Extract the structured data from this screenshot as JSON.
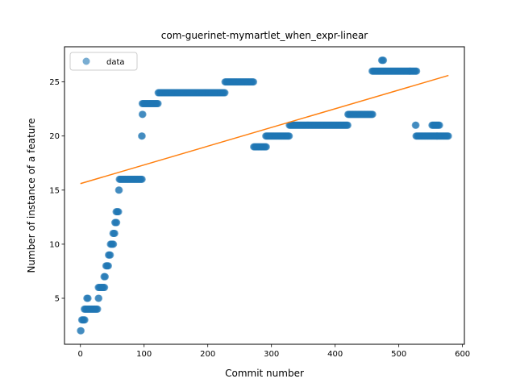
{
  "chart_data": {
    "type": "scatter",
    "title": "com-guerinet-mymartlet_when_expr-linear",
    "xlabel": "Commit number",
    "ylabel": "Number of instance of a feature",
    "xlim": [
      -25,
      603
    ],
    "ylim": [
      0.75,
      28.25
    ],
    "xticks": [
      0,
      100,
      200,
      300,
      400,
      500,
      600
    ],
    "yticks": [
      5,
      10,
      15,
      20,
      25
    ],
    "grid": false,
    "legend_position": "upper-left",
    "colors": {
      "scatter": "#1f77b4",
      "fit": "#ff7f0e",
      "axes": "#000000"
    },
    "series": [
      {
        "name": "data",
        "kind": "scatter",
        "segments": [
          {
            "x_start": 0,
            "x_end": 1,
            "y": 2
          },
          {
            "x_start": 2,
            "x_end": 7,
            "y": 3
          },
          {
            "x_start": 6,
            "x_end": 27,
            "y": 4
          },
          {
            "x_start": 10,
            "x_end": 12,
            "y": 5
          },
          {
            "x_start": 28,
            "x_end": 29,
            "y": 5
          },
          {
            "x_start": 28,
            "x_end": 38,
            "y": 6
          },
          {
            "x_start": 37,
            "x_end": 39,
            "y": 7
          },
          {
            "x_start": 40,
            "x_end": 44,
            "y": 8
          },
          {
            "x_start": 44,
            "x_end": 47,
            "y": 9
          },
          {
            "x_start": 47,
            "x_end": 52,
            "y": 10
          },
          {
            "x_start": 51,
            "x_end": 54,
            "y": 11
          },
          {
            "x_start": 54,
            "x_end": 57,
            "y": 12
          },
          {
            "x_start": 56,
            "x_end": 60,
            "y": 13
          },
          {
            "x_start": 60,
            "x_end": 61,
            "y": 15
          },
          {
            "x_start": 61,
            "x_end": 97,
            "y": 16
          },
          {
            "x_start": 96,
            "x_end": 97,
            "y": 20
          },
          {
            "x_start": 97,
            "x_end": 98,
            "y": 22
          },
          {
            "x_start": 97,
            "x_end": 122,
            "y": 23
          },
          {
            "x_start": 122,
            "x_end": 227,
            "y": 24
          },
          {
            "x_start": 227,
            "x_end": 272,
            "y": 25
          },
          {
            "x_start": 272,
            "x_end": 292,
            "y": 19
          },
          {
            "x_start": 291,
            "x_end": 328,
            "y": 20
          },
          {
            "x_start": 328,
            "x_end": 420,
            "y": 21
          },
          {
            "x_start": 420,
            "x_end": 459,
            "y": 22
          },
          {
            "x_start": 458,
            "x_end": 528,
            "y": 26
          },
          {
            "x_start": 473,
            "x_end": 476,
            "y": 27
          },
          {
            "x_start": 526,
            "x_end": 527,
            "y": 21
          },
          {
            "x_start": 527,
            "x_end": 560,
            "y": 20
          },
          {
            "x_start": 552,
            "x_end": 564,
            "y": 21
          },
          {
            "x_start": 560,
            "x_end": 578,
            "y": 20
          }
        ]
      },
      {
        "name": "",
        "kind": "line",
        "x": [
          0,
          578
        ],
        "y": [
          15.6,
          25.6
        ]
      }
    ]
  }
}
